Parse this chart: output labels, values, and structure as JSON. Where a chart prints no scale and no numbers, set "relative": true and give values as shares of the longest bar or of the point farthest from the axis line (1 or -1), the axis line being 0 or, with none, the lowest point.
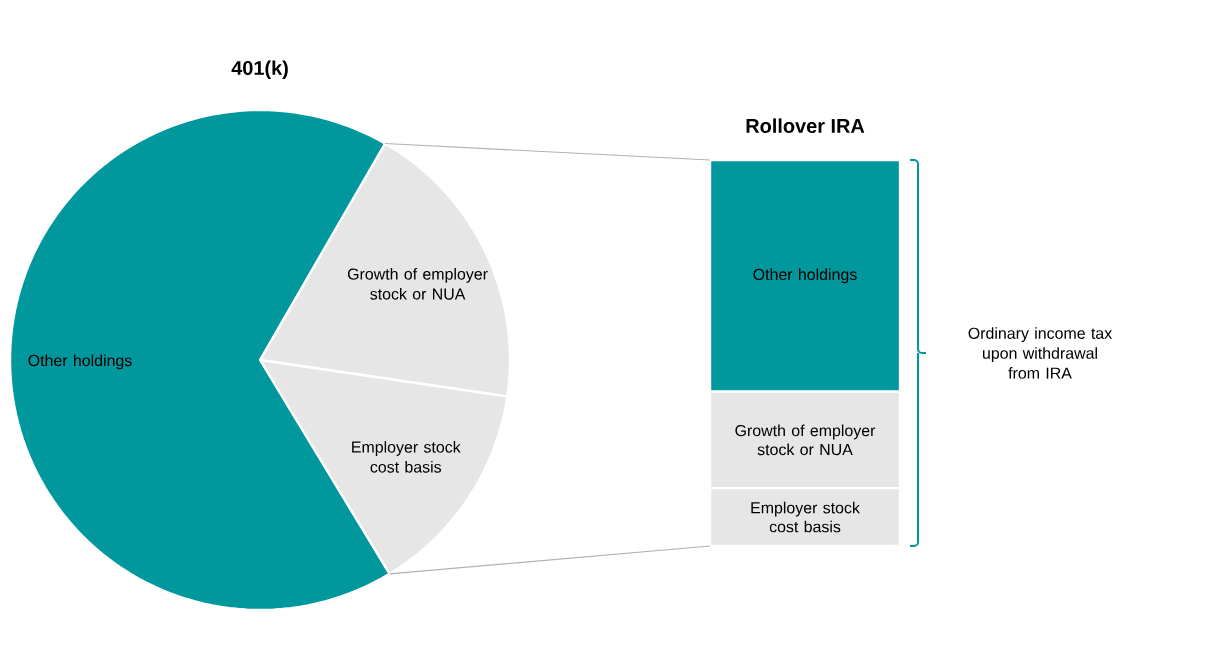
{
  "chart_data": [
    {
      "type": "pie",
      "title": "401(k)",
      "categories": [
        "Growth of employer stock or NUA",
        "Employer stock cost basis",
        "Other holdings"
      ],
      "values": [
        19,
        14,
        67
      ],
      "colors": [
        "#e6e6e6",
        "#e6e6e6",
        "#00979d"
      ]
    },
    {
      "type": "bar",
      "title": "Rollover IRA",
      "stacked": true,
      "relative": true,
      "categories": [
        null
      ],
      "series": [
        {
          "name": "Employer stock cost basis",
          "color": "#e6e6e6",
          "values": [
            0.15
          ]
        },
        {
          "name": "Growth of employer stock or NUA",
          "color": "#e6e6e6",
          "values": [
            0.25
          ]
        },
        {
          "name": "Other holdings",
          "color": "#00979d",
          "values": [
            0.6
          ]
        }
      ],
      "annotations": [
        "Ordinary income tax upon withdrawal from IRA"
      ]
    }
  ]
}
